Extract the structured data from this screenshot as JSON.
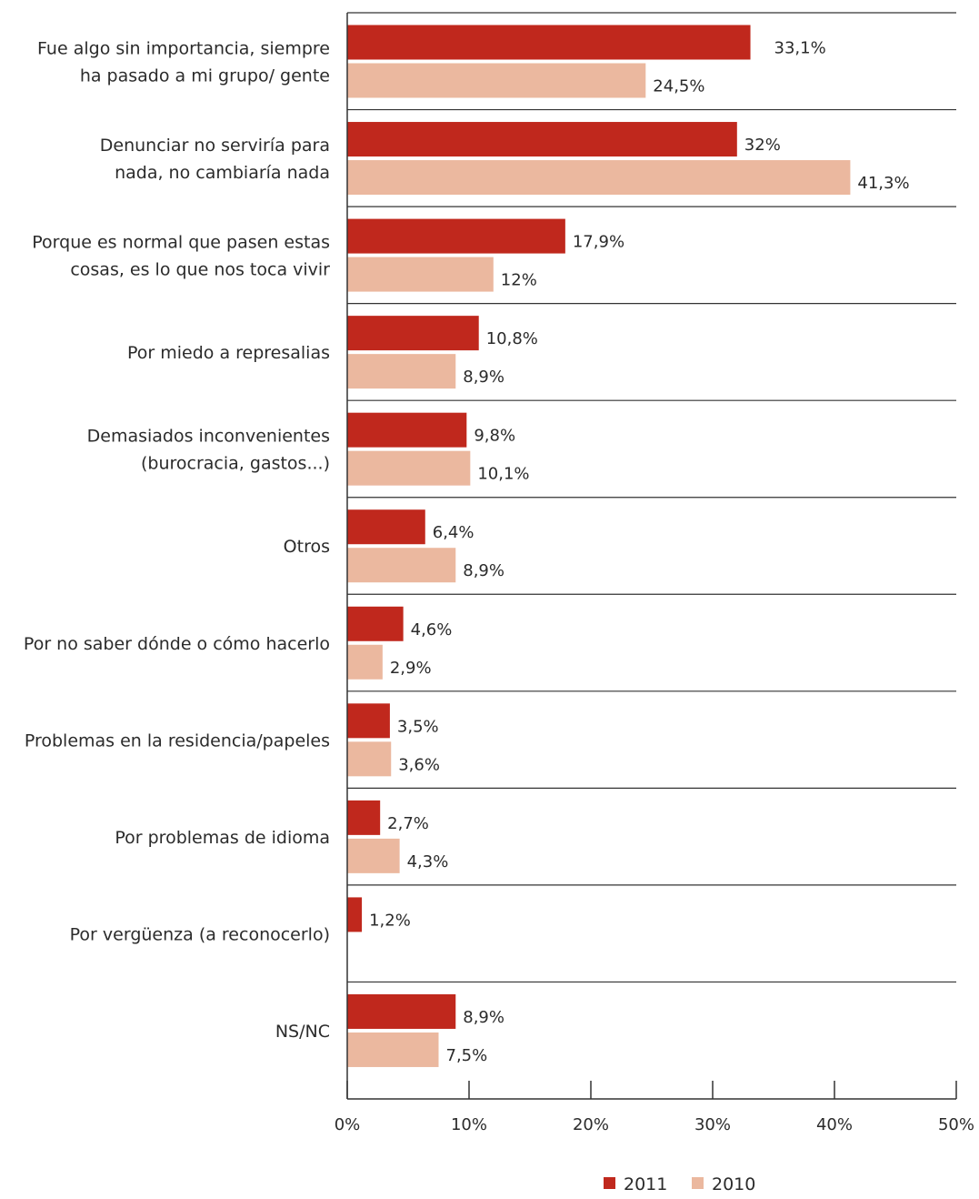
{
  "colors": {
    "series_2011": "#c0281d",
    "series_2010": "#ebb89f",
    "axis": "#333333"
  },
  "chart_data": {
    "type": "bar",
    "orientation": "horizontal",
    "title": "",
    "xlabel": "",
    "ylabel": "",
    "xlim": [
      0,
      50
    ],
    "grid": false,
    "legend_position": "bottom-right",
    "categories": [
      [
        "Fue algo sin importancia, siempre",
        "ha pasado a mi grupo/ gente"
      ],
      [
        "Denunciar no serviría para",
        "nada, no cambiaría nada"
      ],
      [
        "Porque es normal que pasen estas",
        "cosas, es lo que nos toca vivir"
      ],
      [
        "Por miedo a represalias"
      ],
      [
        "Demasiados inconvenientes",
        "(burocracia, gastos...)"
      ],
      [
        "Otros"
      ],
      [
        "Por no saber dónde o cómo hacerlo"
      ],
      [
        "Problemas en la residencia/papeles"
      ],
      [
        "Por problemas de idioma"
      ],
      [
        "Por vergüenza (a reconocerlo)"
      ],
      [
        "NS/NC"
      ]
    ],
    "series": [
      {
        "name": "2011",
        "values": [
          33.1,
          32,
          17.9,
          10.8,
          9.8,
          6.4,
          4.6,
          3.5,
          2.7,
          1.2,
          8.9
        ],
        "labels": [
          "33,1%",
          "32%",
          "17,9%",
          "10,8%",
          "9,8%",
          "6,4%",
          "4,6%",
          "3,5%",
          "2,7%",
          "1,2%",
          "8,9%"
        ]
      },
      {
        "name": "2010",
        "values": [
          24.5,
          41.3,
          12,
          8.9,
          10.1,
          8.9,
          2.9,
          3.6,
          4.3,
          null,
          7.5
        ],
        "labels": [
          "24,5%",
          "41,3%",
          "12%",
          "8,9%",
          "10,1%",
          "8,9%",
          "2,9%",
          "3,6%",
          "4,3%",
          "",
          "7,5%"
        ]
      }
    ],
    "ticks": [
      0,
      10,
      20,
      30,
      40,
      50
    ],
    "tick_labels": [
      "0%",
      "10%",
      "20%",
      "30%",
      "40%",
      "50%"
    ]
  }
}
